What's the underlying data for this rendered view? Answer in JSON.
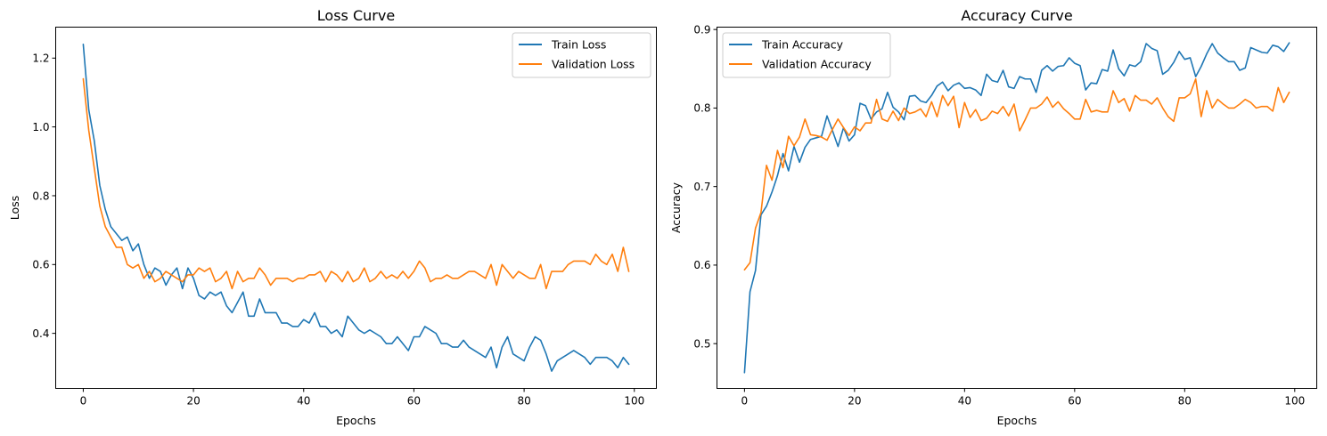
{
  "chart_data": [
    {
      "type": "line",
      "title": "Loss Curve",
      "xlabel": "Epochs",
      "ylabel": "Loss",
      "xlim": [
        -5,
        104
      ],
      "ylim": [
        0.24,
        1.29
      ],
      "xticks": [
        0,
        20,
        40,
        60,
        80,
        100
      ],
      "yticks": [
        0.4,
        0.6,
        0.8,
        1.0,
        1.2
      ],
      "ytick_decimals": 1,
      "grid": false,
      "legend": "top-right",
      "series": [
        {
          "name": "Train Loss",
          "color": "#1f77b4",
          "values": [
            1.24,
            1.05,
            0.96,
            0.83,
            0.76,
            0.71,
            0.69,
            0.67,
            0.68,
            0.64,
            0.66,
            0.6,
            0.56,
            0.59,
            0.58,
            0.54,
            0.57,
            0.59,
            0.53,
            0.59,
            0.56,
            0.51,
            0.5,
            0.52,
            0.51,
            0.52,
            0.48,
            0.46,
            0.49,
            0.52,
            0.45,
            0.45,
            0.5,
            0.46,
            0.46,
            0.46,
            0.43,
            0.43,
            0.42,
            0.42,
            0.44,
            0.43,
            0.46,
            0.42,
            0.42,
            0.4,
            0.41,
            0.39,
            0.45,
            0.43,
            0.41,
            0.4,
            0.41,
            0.4,
            0.39,
            0.37,
            0.37,
            0.39,
            0.37,
            0.35,
            0.39,
            0.39,
            0.42,
            0.41,
            0.4,
            0.37,
            0.37,
            0.36,
            0.36,
            0.38,
            0.36,
            0.35,
            0.34,
            0.33,
            0.36,
            0.3,
            0.36,
            0.39,
            0.34,
            0.33,
            0.32,
            0.36,
            0.39,
            0.38,
            0.34,
            0.29,
            0.32,
            0.33,
            0.34,
            0.35,
            0.34,
            0.33,
            0.31,
            0.33,
            0.33,
            0.33,
            0.32,
            0.3,
            0.33,
            0.31
          ]
        },
        {
          "name": "Validation Loss",
          "color": "#ff7f0e",
          "values": [
            1.14,
            0.99,
            0.88,
            0.77,
            0.71,
            0.68,
            0.65,
            0.65,
            0.6,
            0.59,
            0.6,
            0.56,
            0.58,
            0.55,
            0.56,
            0.58,
            0.57,
            0.56,
            0.55,
            0.57,
            0.57,
            0.59,
            0.58,
            0.59,
            0.55,
            0.56,
            0.58,
            0.53,
            0.58,
            0.55,
            0.56,
            0.56,
            0.59,
            0.57,
            0.54,
            0.56,
            0.56,
            0.56,
            0.55,
            0.56,
            0.56,
            0.57,
            0.57,
            0.58,
            0.55,
            0.58,
            0.57,
            0.55,
            0.58,
            0.55,
            0.56,
            0.59,
            0.55,
            0.56,
            0.58,
            0.56,
            0.57,
            0.56,
            0.58,
            0.56,
            0.58,
            0.61,
            0.59,
            0.55,
            0.56,
            0.56,
            0.57,
            0.56,
            0.56,
            0.57,
            0.58,
            0.58,
            0.57,
            0.56,
            0.6,
            0.54,
            0.6,
            0.58,
            0.56,
            0.58,
            0.57,
            0.56,
            0.56,
            0.6,
            0.53,
            0.58,
            0.58,
            0.58,
            0.6,
            0.61,
            0.61,
            0.61,
            0.6,
            0.63,
            0.61,
            0.6,
            0.63,
            0.58,
            0.65,
            0.58
          ]
        }
      ]
    },
    {
      "type": "line",
      "title": "Accuracy Curve",
      "xlabel": "Epochs",
      "ylabel": "Accuracy",
      "xlim": [
        -5,
        104
      ],
      "ylim": [
        0.443,
        0.903
      ],
      "xticks": [
        0,
        20,
        40,
        60,
        80,
        100
      ],
      "yticks": [
        0.5,
        0.6,
        0.7,
        0.8,
        0.9
      ],
      "ytick_decimals": 1,
      "grid": false,
      "legend": "top-left",
      "series": [
        {
          "name": "Train Accuracy",
          "color": "#1f77b4",
          "values": [
            0.463,
            0.566,
            0.593,
            0.664,
            0.675,
            0.693,
            0.714,
            0.742,
            0.72,
            0.751,
            0.731,
            0.75,
            0.76,
            0.762,
            0.764,
            0.79,
            0.771,
            0.751,
            0.775,
            0.758,
            0.766,
            0.806,
            0.803,
            0.786,
            0.795,
            0.799,
            0.82,
            0.801,
            0.795,
            0.785,
            0.815,
            0.816,
            0.809,
            0.807,
            0.816,
            0.828,
            0.833,
            0.822,
            0.829,
            0.832,
            0.825,
            0.826,
            0.823,
            0.816,
            0.843,
            0.835,
            0.833,
            0.848,
            0.827,
            0.825,
            0.84,
            0.837,
            0.837,
            0.82,
            0.848,
            0.854,
            0.847,
            0.853,
            0.854,
            0.864,
            0.857,
            0.854,
            0.823,
            0.832,
            0.831,
            0.849,
            0.847,
            0.874,
            0.85,
            0.841,
            0.855,
            0.853,
            0.859,
            0.882,
            0.876,
            0.873,
            0.843,
            0.848,
            0.858,
            0.872,
            0.862,
            0.864,
            0.84,
            0.853,
            0.869,
            0.882,
            0.87,
            0.864,
            0.859,
            0.859,
            0.848,
            0.851,
            0.877,
            0.874,
            0.871,
            0.87,
            0.88,
            0.878,
            0.872,
            0.883
          ]
        },
        {
          "name": "Validation Accuracy",
          "color": "#ff7f0e",
          "values": [
            0.594,
            0.603,
            0.647,
            0.667,
            0.727,
            0.708,
            0.746,
            0.724,
            0.764,
            0.752,
            0.763,
            0.786,
            0.766,
            0.765,
            0.763,
            0.759,
            0.773,
            0.786,
            0.775,
            0.765,
            0.776,
            0.771,
            0.781,
            0.781,
            0.811,
            0.786,
            0.783,
            0.796,
            0.784,
            0.8,
            0.793,
            0.795,
            0.799,
            0.789,
            0.808,
            0.789,
            0.816,
            0.803,
            0.815,
            0.775,
            0.807,
            0.788,
            0.798,
            0.784,
            0.787,
            0.796,
            0.793,
            0.802,
            0.79,
            0.805,
            0.771,
            0.785,
            0.8,
            0.8,
            0.805,
            0.814,
            0.801,
            0.808,
            0.799,
            0.793,
            0.786,
            0.786,
            0.811,
            0.795,
            0.797,
            0.795,
            0.795,
            0.822,
            0.807,
            0.812,
            0.796,
            0.816,
            0.81,
            0.81,
            0.805,
            0.813,
            0.8,
            0.789,
            0.783,
            0.813,
            0.813,
            0.818,
            0.837,
            0.789,
            0.822,
            0.8,
            0.811,
            0.805,
            0.8,
            0.8,
            0.805,
            0.811,
            0.807,
            0.8,
            0.802,
            0.802,
            0.796,
            0.826,
            0.807,
            0.82
          ]
        }
      ]
    }
  ]
}
